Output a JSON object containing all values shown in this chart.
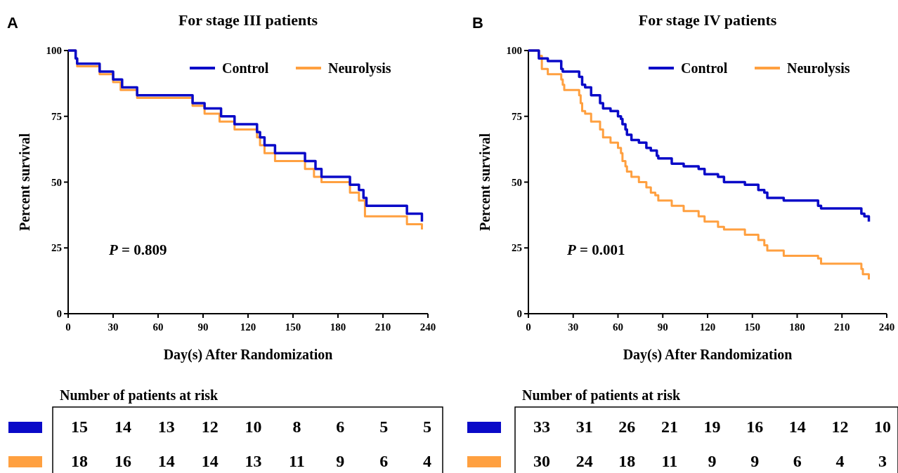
{
  "chart_data": [
    {
      "type": "step",
      "title": "For stage III patients",
      "xlabel": "Day(s) After Randomization",
      "ylabel": "Percent survival",
      "annotations": [
        "A",
        "P = 0.809"
      ],
      "xlim": [
        0,
        240
      ],
      "xticks": [
        0,
        30,
        60,
        90,
        120,
        150,
        180,
        210,
        240
      ],
      "ylim": [
        0,
        100
      ],
      "yticks": [
        0,
        25,
        50,
        75,
        100
      ],
      "legend": "top right",
      "grid": false,
      "series": [
        {
          "name": "Control",
          "color": "#0a0ac8",
          "x": [
            0,
            5,
            6,
            21,
            30,
            36,
            46,
            83,
            91,
            102,
            111,
            126,
            128,
            131,
            138,
            158,
            165,
            169,
            188,
            194,
            197,
            199,
            226,
            236
          ],
          "values": [
            100,
            97,
            95,
            92,
            89,
            86,
            83,
            80,
            78,
            75,
            72,
            69,
            67,
            64,
            61,
            58,
            55,
            52,
            49,
            47,
            44,
            41,
            38,
            35
          ]
        },
        {
          "name": "Neurolysis",
          "color": "#ffa040",
          "x": [
            0,
            5,
            6,
            21,
            30,
            35,
            46,
            83,
            91,
            101,
            111,
            126,
            128,
            131,
            138,
            158,
            164,
            169,
            188,
            194,
            198,
            226,
            236
          ],
          "values": [
            100,
            97,
            94,
            91,
            88,
            85,
            82,
            79,
            76,
            73,
            70,
            67,
            64,
            61,
            58,
            55,
            52,
            50,
            46,
            43,
            37,
            34,
            32
          ]
        }
      ]
    },
    {
      "type": "other",
      "title": "Number of patients at risk",
      "annotations": [
        "15",
        "14",
        "13",
        "12",
        "10",
        "8",
        "6",
        "5",
        "5",
        "18",
        "16",
        "14",
        "14",
        "13",
        "11",
        "9",
        "6",
        "4"
      ]
    },
    {
      "type": "step",
      "title": "For stage IV patients",
      "xlabel": "Day(s) After Randomization",
      "ylabel": "Percent survival",
      "annotations": [
        "B",
        "P = 0.001"
      ],
      "xlim": [
        0,
        240
      ],
      "xticks": [
        0,
        30,
        60,
        90,
        120,
        150,
        180,
        210,
        240
      ],
      "ylim": [
        0,
        100
      ],
      "yticks": [
        0,
        25,
        50,
        75,
        100
      ],
      "legend": "top right",
      "grid": false,
      "series": [
        {
          "name": "Control",
          "color": "#0a0ac8",
          "x": [
            0,
            7,
            13,
            22,
            23,
            34,
            36,
            38,
            42,
            48,
            50,
            55,
            60,
            62,
            63,
            65,
            66,
            69,
            74,
            79,
            82,
            86,
            87,
            96,
            104,
            114,
            118,
            127,
            131,
            145,
            154,
            158,
            160,
            171,
            194,
            196,
            223,
            225,
            228
          ],
          "values": [
            100,
            97,
            96,
            93,
            92,
            90,
            87,
            86,
            83,
            80,
            78,
            77,
            75,
            74,
            72,
            70,
            68,
            66,
            65,
            63,
            62,
            60,
            59,
            57,
            56,
            55,
            53,
            52,
            50,
            49,
            47,
            46,
            44,
            43,
            41,
            40,
            38,
            37,
            35
          ]
        },
        {
          "name": "Neurolysis",
          "color": "#ffa040",
          "x": [
            0,
            7,
            9,
            13,
            22,
            23,
            24,
            34,
            35,
            36,
            38,
            42,
            48,
            50,
            55,
            60,
            62,
            63,
            65,
            66,
            69,
            74,
            79,
            82,
            85,
            87,
            96,
            104,
            114,
            118,
            127,
            131,
            145,
            154,
            158,
            160,
            171,
            194,
            196,
            223,
            224,
            228
          ],
          "values": [
            100,
            98,
            93,
            91,
            89,
            87,
            85,
            83,
            80,
            77,
            76,
            73,
            70,
            67,
            65,
            63,
            61,
            58,
            56,
            54,
            52,
            50,
            48,
            46,
            45,
            43,
            41,
            39,
            37,
            35,
            33,
            32,
            30,
            28,
            26,
            24,
            22,
            21,
            19,
            17,
            15,
            13
          ]
        }
      ]
    },
    {
      "type": "other",
      "title": "Number of patients at risk",
      "annotations": [
        "33",
        "31",
        "26",
        "21",
        "19",
        "16",
        "14",
        "12",
        "10",
        "30",
        "24",
        "18",
        "11",
        "9",
        "9",
        "6",
        "4",
        "3"
      ]
    }
  ]
}
